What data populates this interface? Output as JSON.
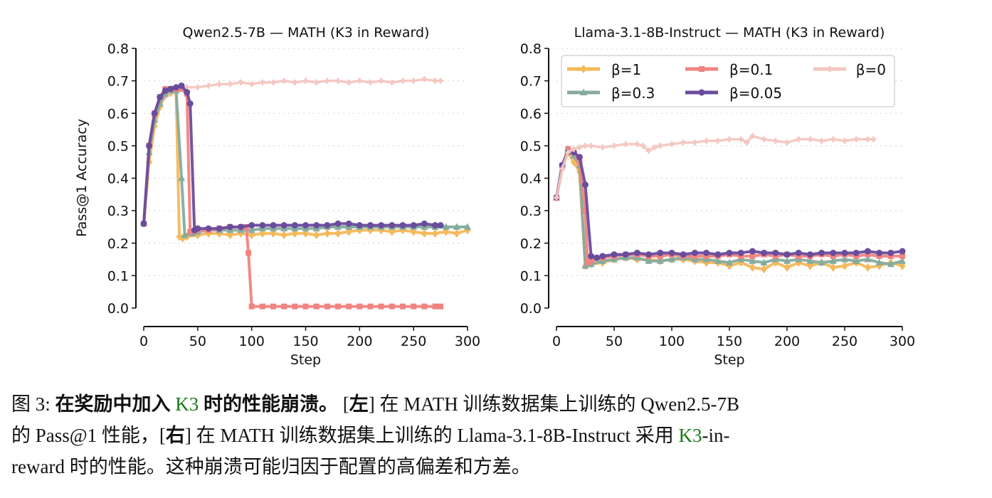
{
  "chart_data": [
    {
      "type": "line",
      "title": "Qwen2.5-7B — MATH (K3 in Reward)",
      "xlabel": "Step",
      "ylabel": "Pass@1 Accuracy",
      "xlim": [
        0,
        300
      ],
      "ylim": [
        0,
        0.8
      ],
      "xticks": [
        "0",
        "50",
        "100",
        "150",
        "200",
        "250",
        "300"
      ],
      "yticks": [
        "0.0",
        "0.1",
        "0.2",
        "0.3",
        "0.4",
        "0.5",
        "0.6",
        "0.7",
        "0.8"
      ],
      "grid": "horizontal dotted",
      "series": [
        {
          "name": "β=0",
          "color": "#f4c7c0",
          "marker": "plus",
          "x": [
            0,
            5,
            10,
            15,
            20,
            25,
            30,
            35,
            40,
            50,
            60,
            70,
            80,
            90,
            100,
            110,
            120,
            130,
            140,
            150,
            160,
            170,
            180,
            190,
            200,
            210,
            220,
            230,
            240,
            250,
            260,
            270,
            275
          ],
          "y": [
            0.26,
            0.5,
            0.59,
            0.63,
            0.65,
            0.66,
            0.67,
            0.675,
            0.68,
            0.68,
            0.685,
            0.69,
            0.69,
            0.695,
            0.69,
            0.695,
            0.695,
            0.7,
            0.695,
            0.7,
            0.695,
            0.7,
            0.7,
            0.695,
            0.7,
            0.695,
            0.7,
            0.695,
            0.7,
            0.7,
            0.705,
            0.7,
            0.7
          ]
        },
        {
          "name": "β=1",
          "color": "#f4b95b",
          "marker": "diamond",
          "x": [
            0,
            5,
            10,
            15,
            20,
            25,
            30,
            33,
            36,
            40,
            50,
            60,
            70,
            80,
            90,
            100,
            110,
            120,
            130,
            140,
            150,
            160,
            170,
            180,
            190,
            200,
            210,
            220,
            230,
            240,
            250,
            260,
            270,
            280,
            290,
            300
          ],
          "y": [
            0.26,
            0.45,
            0.56,
            0.62,
            0.66,
            0.665,
            0.665,
            0.22,
            0.215,
            0.22,
            0.225,
            0.23,
            0.23,
            0.225,
            0.23,
            0.225,
            0.23,
            0.23,
            0.225,
            0.23,
            0.23,
            0.225,
            0.23,
            0.23,
            0.235,
            0.24,
            0.24,
            0.24,
            0.235,
            0.24,
            0.235,
            0.23,
            0.23,
            0.235,
            0.23,
            0.24
          ]
        },
        {
          "name": "β=0.3",
          "color": "#86ab9e",
          "marker": "triangle",
          "x": [
            0,
            5,
            10,
            15,
            20,
            25,
            30,
            35,
            38,
            45,
            50,
            60,
            70,
            80,
            90,
            100,
            110,
            120,
            130,
            140,
            150,
            160,
            170,
            180,
            190,
            200,
            210,
            220,
            230,
            240,
            250,
            260,
            270,
            280,
            290,
            300
          ],
          "y": [
            0.26,
            0.48,
            0.58,
            0.63,
            0.66,
            0.67,
            0.67,
            0.4,
            0.225,
            0.23,
            0.235,
            0.24,
            0.24,
            0.24,
            0.24,
            0.24,
            0.245,
            0.245,
            0.245,
            0.245,
            0.245,
            0.245,
            0.25,
            0.25,
            0.25,
            0.25,
            0.25,
            0.25,
            0.25,
            0.25,
            0.25,
            0.25,
            0.25,
            0.25,
            0.25,
            0.25
          ]
        },
        {
          "name": "β=0.1",
          "color": "#f08480",
          "marker": "square",
          "x": [
            0,
            5,
            10,
            15,
            20,
            25,
            30,
            35,
            40,
            43,
            50,
            60,
            70,
            80,
            90,
            95,
            97,
            100,
            110,
            120,
            130,
            140,
            150,
            160,
            170,
            180,
            190,
            200,
            210,
            220,
            230,
            240,
            250,
            260,
            270,
            275
          ],
          "y": [
            0.26,
            0.5,
            0.6,
            0.65,
            0.675,
            0.675,
            0.675,
            0.675,
            0.66,
            0.235,
            0.24,
            0.24,
            0.245,
            0.25,
            0.25,
            0.25,
            0.17,
            0.005,
            0.005,
            0.005,
            0.005,
            0.005,
            0.005,
            0.005,
            0.005,
            0.005,
            0.005,
            0.005,
            0.005,
            0.005,
            0.005,
            0.005,
            0.005,
            0.005,
            0.005,
            0.005
          ]
        },
        {
          "name": "β=0.05",
          "color": "#6a4c9c",
          "marker": "circle",
          "x": [
            0,
            5,
            10,
            15,
            20,
            25,
            30,
            35,
            40,
            43,
            47,
            50,
            60,
            70,
            80,
            90,
            100,
            110,
            120,
            130,
            140,
            150,
            160,
            170,
            180,
            190,
            200,
            210,
            220,
            230,
            240,
            250,
            260,
            270,
            275
          ],
          "y": [
            0.26,
            0.5,
            0.6,
            0.65,
            0.67,
            0.675,
            0.68,
            0.685,
            0.665,
            0.63,
            0.24,
            0.245,
            0.245,
            0.245,
            0.25,
            0.25,
            0.255,
            0.255,
            0.255,
            0.255,
            0.255,
            0.255,
            0.255,
            0.255,
            0.26,
            0.26,
            0.255,
            0.255,
            0.255,
            0.255,
            0.255,
            0.255,
            0.26,
            0.255,
            0.255
          ]
        }
      ]
    },
    {
      "type": "line",
      "title": "Llama-3.1-8B-Instruct — MATH (K3 in Reward)",
      "xlabel": "Step",
      "ylabel": "",
      "xlim": [
        0,
        300
      ],
      "ylim": [
        0,
        0.8
      ],
      "xticks": [
        "0",
        "50",
        "100",
        "150",
        "200",
        "250",
        "300"
      ],
      "yticks": [
        "0.0",
        "0.1",
        "0.2",
        "0.3",
        "0.4",
        "0.5",
        "0.6",
        "0.7",
        "0.8"
      ],
      "grid": "horizontal dotted",
      "legend": "top (3 columns)",
      "series": [
        {
          "name": "β=1",
          "color": "#f4b95b",
          "marker": "diamond",
          "x": [
            0,
            5,
            10,
            15,
            20,
            25,
            30,
            40,
            50,
            60,
            70,
            80,
            90,
            100,
            110,
            120,
            130,
            140,
            150,
            160,
            170,
            180,
            190,
            200,
            210,
            220,
            230,
            240,
            250,
            260,
            270,
            280,
            290,
            300
          ],
          "y": [
            0.34,
            0.43,
            0.48,
            0.45,
            0.42,
            0.13,
            0.135,
            0.14,
            0.15,
            0.155,
            0.15,
            0.15,
            0.145,
            0.15,
            0.15,
            0.145,
            0.14,
            0.14,
            0.13,
            0.14,
            0.125,
            0.12,
            0.14,
            0.125,
            0.14,
            0.13,
            0.14,
            0.125,
            0.13,
            0.14,
            0.125,
            0.13,
            0.14,
            0.13
          ]
        },
        {
          "name": "β=0.3",
          "color": "#86ab9e",
          "marker": "triangle",
          "x": [
            0,
            5,
            10,
            15,
            20,
            25,
            30,
            40,
            50,
            60,
            70,
            80,
            90,
            100,
            110,
            120,
            130,
            140,
            150,
            160,
            170,
            180,
            190,
            200,
            210,
            220,
            230,
            240,
            250,
            260,
            270,
            280,
            290,
            300
          ],
          "y": [
            0.34,
            0.44,
            0.49,
            0.47,
            0.44,
            0.13,
            0.135,
            0.145,
            0.15,
            0.155,
            0.155,
            0.145,
            0.145,
            0.15,
            0.155,
            0.15,
            0.15,
            0.145,
            0.14,
            0.15,
            0.145,
            0.14,
            0.15,
            0.145,
            0.15,
            0.145,
            0.14,
            0.145,
            0.15,
            0.145,
            0.15,
            0.14,
            0.135,
            0.145
          ]
        },
        {
          "name": "β=0.1",
          "color": "#f08480",
          "marker": "square",
          "x": [
            0,
            5,
            10,
            15,
            20,
            25,
            27,
            30,
            40,
            50,
            60,
            70,
            80,
            90,
            100,
            110,
            120,
            130,
            140,
            150,
            160,
            170,
            180,
            190,
            200,
            210,
            220,
            230,
            240,
            250,
            260,
            270,
            280,
            290,
            300
          ],
          "y": [
            0.34,
            0.44,
            0.49,
            0.48,
            0.45,
            0.3,
            0.14,
            0.145,
            0.155,
            0.16,
            0.165,
            0.165,
            0.16,
            0.16,
            0.165,
            0.16,
            0.16,
            0.16,
            0.16,
            0.165,
            0.16,
            0.16,
            0.165,
            0.16,
            0.165,
            0.16,
            0.16,
            0.165,
            0.16,
            0.165,
            0.16,
            0.165,
            0.16,
            0.16,
            0.16
          ]
        },
        {
          "name": "β=0.05",
          "color": "#6a4c9c",
          "marker": "circle",
          "x": [
            0,
            5,
            10,
            15,
            20,
            25,
            30,
            35,
            40,
            50,
            60,
            70,
            80,
            90,
            100,
            110,
            120,
            130,
            140,
            150,
            160,
            170,
            180,
            190,
            200,
            210,
            220,
            230,
            240,
            250,
            260,
            270,
            280,
            290,
            300
          ],
          "y": [
            0.34,
            0.44,
            0.48,
            0.48,
            0.465,
            0.38,
            0.16,
            0.155,
            0.16,
            0.165,
            0.165,
            0.17,
            0.165,
            0.17,
            0.17,
            0.165,
            0.17,
            0.17,
            0.165,
            0.17,
            0.17,
            0.175,
            0.17,
            0.17,
            0.165,
            0.17,
            0.165,
            0.17,
            0.17,
            0.17,
            0.17,
            0.175,
            0.17,
            0.17,
            0.175
          ]
        },
        {
          "name": "β=0",
          "color": "#f4c7c0",
          "marker": "plus",
          "x": [
            0,
            5,
            10,
            15,
            20,
            25,
            30,
            40,
            50,
            60,
            70,
            75,
            80,
            85,
            90,
            100,
            110,
            120,
            130,
            140,
            150,
            160,
            165,
            170,
            180,
            190,
            200,
            210,
            220,
            230,
            240,
            250,
            260,
            270,
            275
          ],
          "y": [
            0.34,
            0.43,
            0.48,
            0.49,
            0.495,
            0.5,
            0.5,
            0.495,
            0.5,
            0.505,
            0.505,
            0.5,
            0.485,
            0.495,
            0.5,
            0.505,
            0.51,
            0.51,
            0.515,
            0.515,
            0.52,
            0.52,
            0.51,
            0.53,
            0.52,
            0.515,
            0.51,
            0.52,
            0.52,
            0.515,
            0.52,
            0.515,
            0.52,
            0.52,
            0.52
          ]
        }
      ]
    }
  ],
  "caption": {
    "lines": [
      [
        {
          "t": "图 3: ",
          "s": ""
        },
        {
          "t": "在奖励中加入 ",
          "s": "b"
        },
        {
          "t": "K3",
          "s": "g"
        },
        {
          "t": " 时的性能崩溃。",
          "s": "b"
        },
        {
          "t": " [",
          "s": ""
        },
        {
          "t": "左",
          "s": "b"
        },
        {
          "t": "] 在 MATH 训练数据集上训练的 Qwen2.5-7B",
          "s": ""
        }
      ],
      [
        {
          "t": "的 Pass@1 性能，[",
          "s": ""
        },
        {
          "t": "右",
          "s": "b"
        },
        {
          "t": "] 在 MATH 训练数据集上训练的 Llama-3.1-8B-Instruct 采用 ",
          "s": ""
        },
        {
          "t": "K3",
          "s": "g"
        },
        {
          "t": "-in-",
          "s": ""
        }
      ],
      [
        {
          "t": "reward 时的性能。这种崩溃可能归因于配置的高偏差和方差。",
          "s": ""
        }
      ]
    ]
  }
}
